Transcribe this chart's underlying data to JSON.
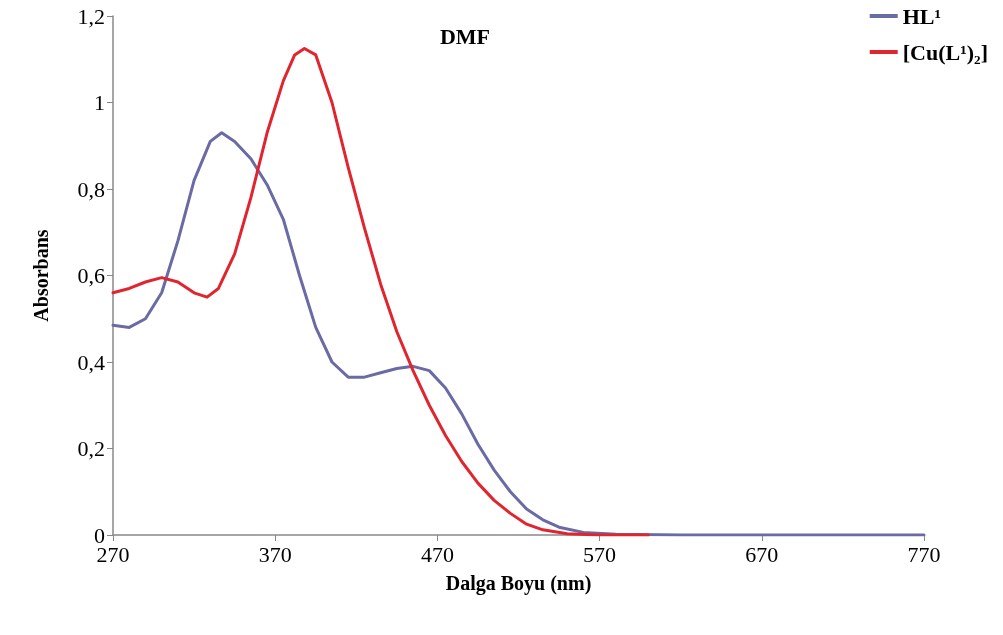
{
  "chart_data": {
    "type": "line",
    "title": "DMF",
    "xlabel": "Dalga Boyu (nm)",
    "ylabel": "Absorbans",
    "xlim": [
      270,
      770
    ],
    "xticks": [
      270,
      370,
      470,
      570,
      670,
      770
    ],
    "ylim": [
      0,
      1.2
    ],
    "yticks": [
      0,
      {
        "value": 0.2,
        "label": "0,2"
      },
      {
        "value": 0.4,
        "label": "0,4"
      },
      {
        "value": 0.6,
        "label": "0,6"
      },
      {
        "value": 0.8,
        "label": "0,8"
      },
      1,
      {
        "value": 1.2,
        "label": "1,2"
      }
    ],
    "grid": false,
    "legend": "top right",
    "marker": "none",
    "line_style": "solid",
    "series": [
      {
        "name": "HL¹",
        "color": "#6a6aa5",
        "x": [
          270,
          280,
          290,
          300,
          310,
          320,
          330,
          337,
          345,
          355,
          365,
          375,
          385,
          395,
          405,
          415,
          425,
          435,
          445,
          455,
          465,
          475,
          485,
          495,
          505,
          515,
          525,
          535,
          545,
          560,
          580,
          620,
          770
        ],
        "values": [
          0.485,
          0.48,
          0.5,
          0.56,
          0.68,
          0.82,
          0.91,
          0.93,
          0.91,
          0.87,
          0.81,
          0.73,
          0.6,
          0.48,
          0.4,
          0.365,
          0.365,
          0.375,
          0.385,
          0.39,
          0.38,
          0.34,
          0.28,
          0.21,
          0.15,
          0.1,
          0.06,
          0.035,
          0.018,
          0.006,
          0.002,
          0,
          0
        ]
      },
      {
        "name": "[Cu(L¹)₂]",
        "color": "#e0252f",
        "x": [
          270,
          280,
          290,
          300,
          310,
          320,
          328,
          335,
          345,
          355,
          365,
          375,
          382,
          388,
          395,
          405,
          415,
          425,
          435,
          445,
          455,
          465,
          475,
          485,
          495,
          505,
          515,
          525,
          535,
          550,
          570,
          600
        ],
        "values": [
          0.56,
          0.57,
          0.585,
          0.595,
          0.585,
          0.56,
          0.55,
          0.57,
          0.65,
          0.78,
          0.93,
          1.05,
          1.11,
          1.125,
          1.11,
          1,
          0.85,
          0.71,
          0.58,
          0.47,
          0.38,
          0.3,
          0.23,
          0.17,
          0.12,
          0.08,
          0.05,
          0.025,
          0.012,
          0.003,
          0,
          0
        ]
      }
    ]
  }
}
